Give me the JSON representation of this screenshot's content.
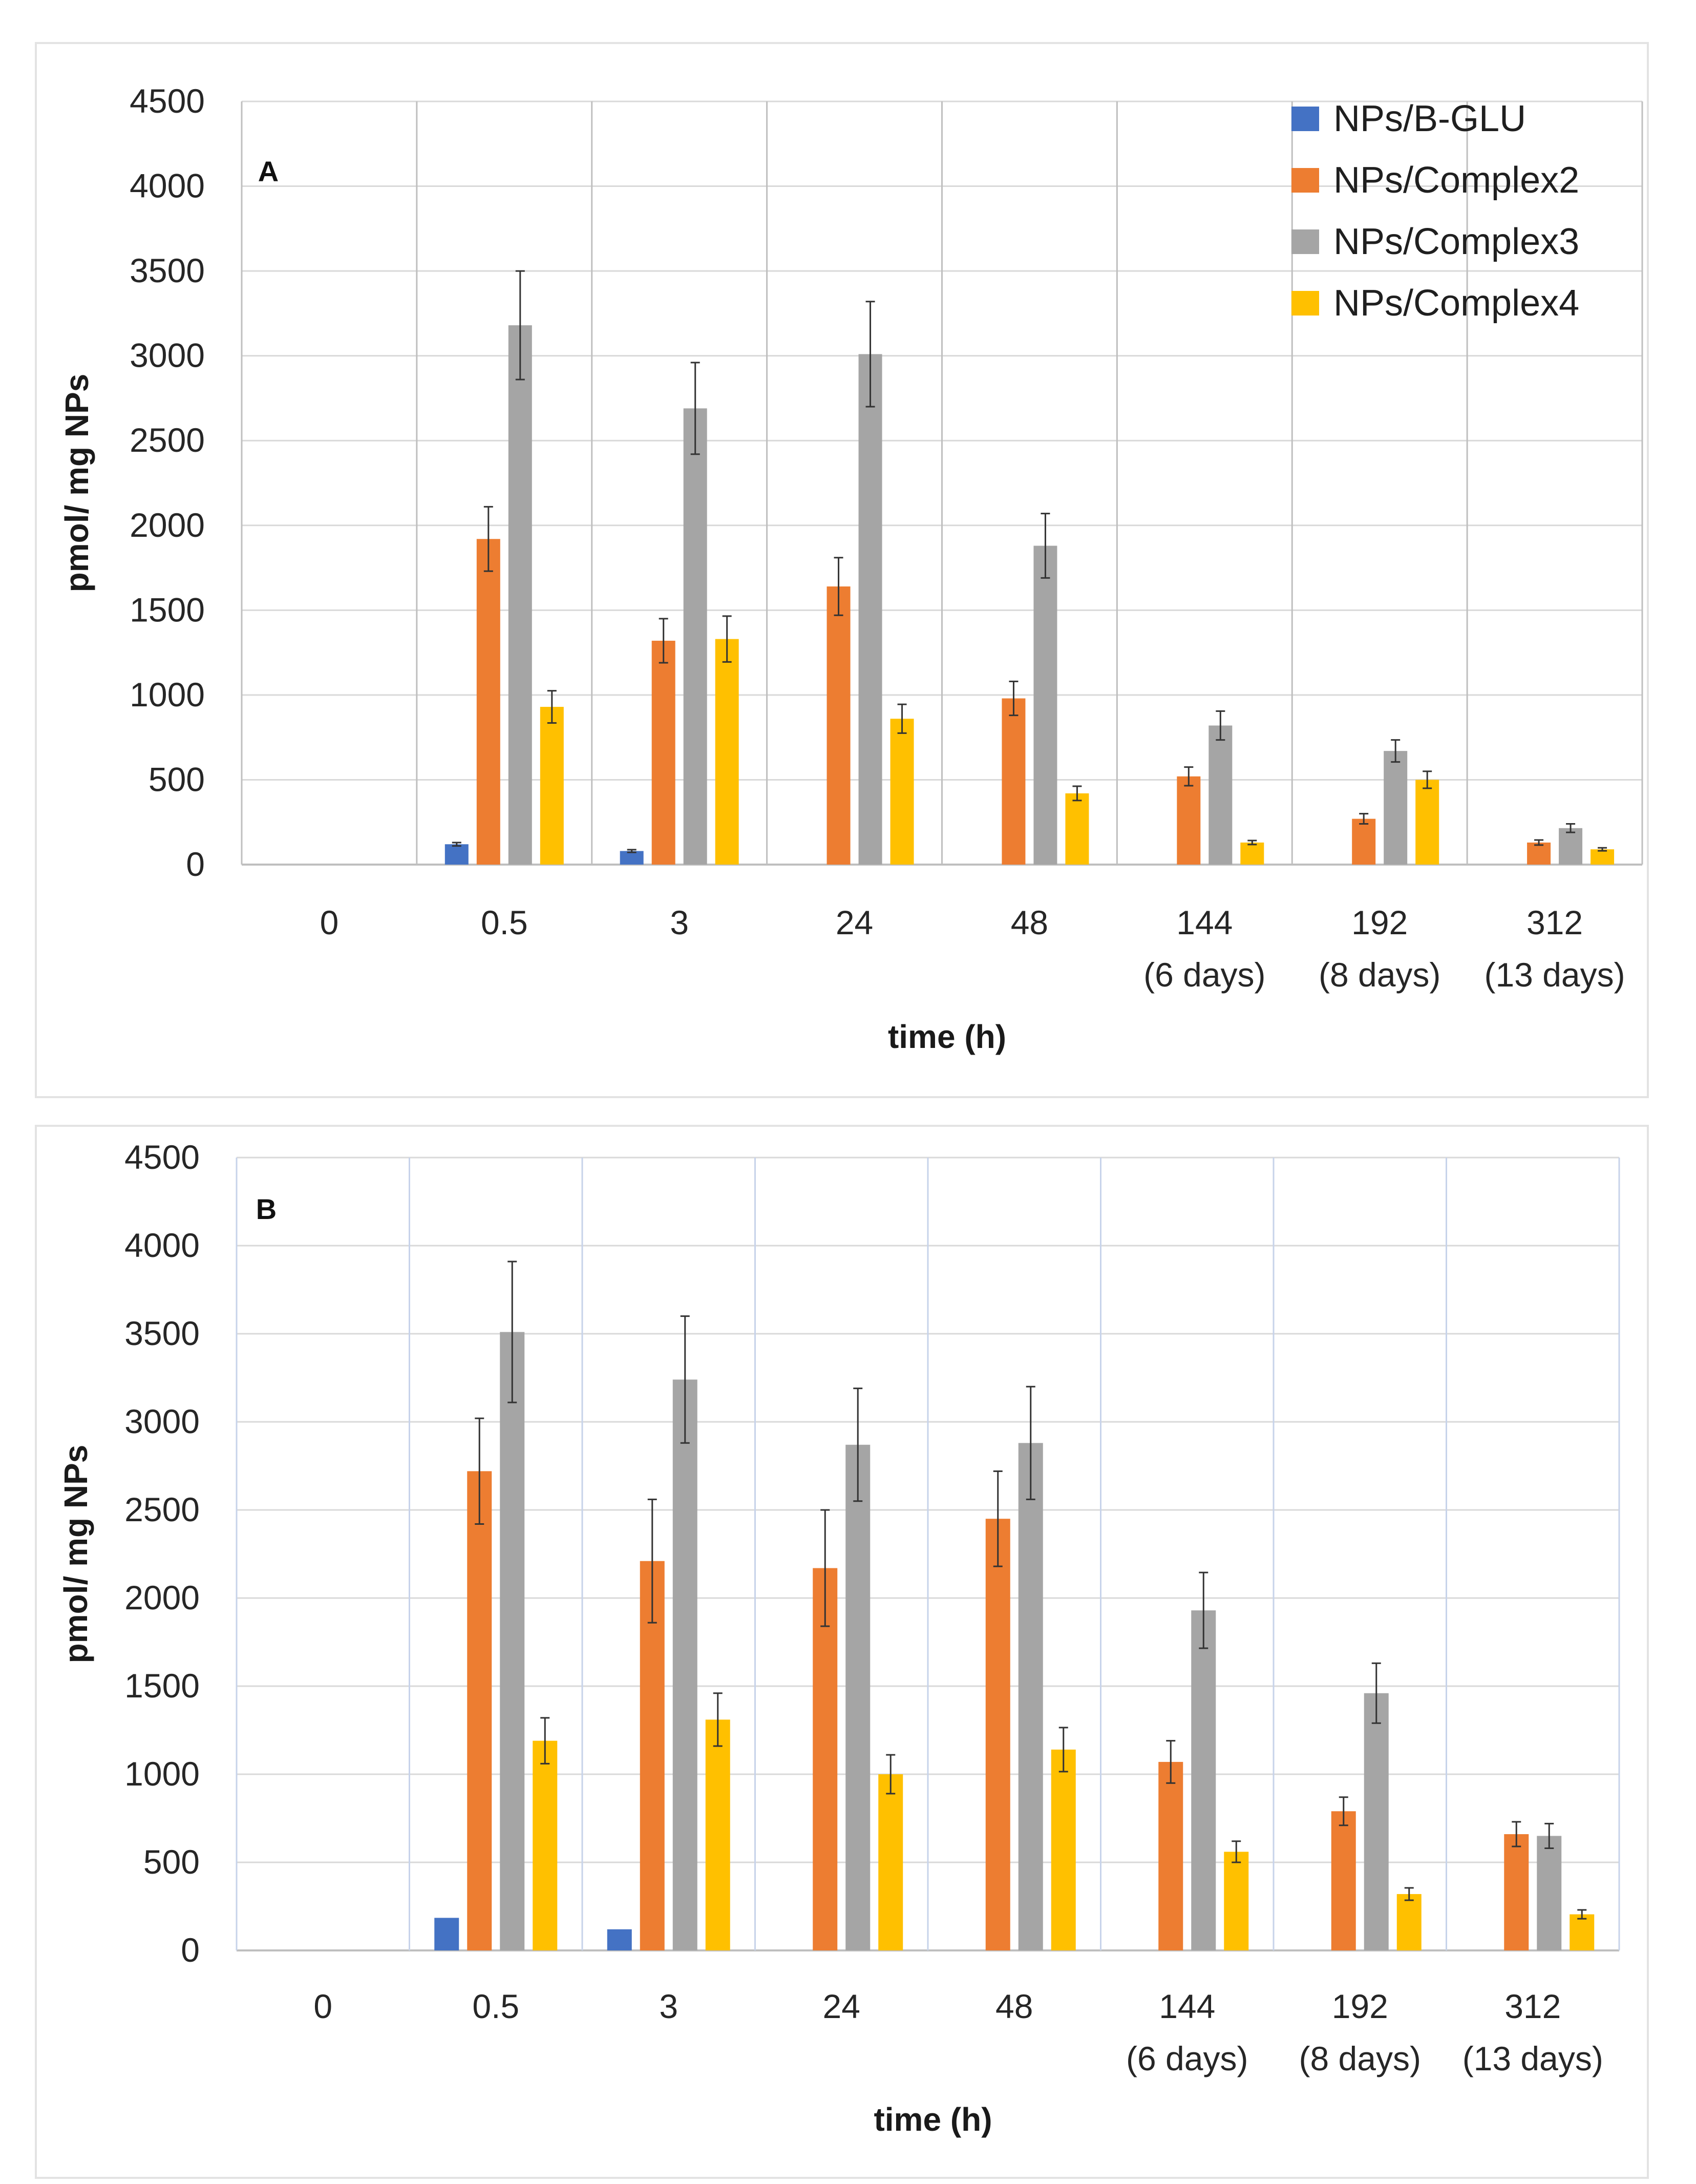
{
  "chart_data": [
    {
      "type": "bar",
      "panel_label": "A",
      "categories": [
        {
          "line1": "0",
          "line2": ""
        },
        {
          "line1": "0.5",
          "line2": ""
        },
        {
          "line1": "3",
          "line2": ""
        },
        {
          "line1": "24",
          "line2": ""
        },
        {
          "line1": "48",
          "line2": ""
        },
        {
          "line1": "144",
          "line2": "(6 days)"
        },
        {
          "line1": "192",
          "line2": "(8 days)"
        },
        {
          "line1": "312",
          "line2": "(13 days)"
        }
      ],
      "xlabel": "time (h)",
      "ylabel": "pmol/ mg NPs",
      "ylim": [
        0,
        4500
      ],
      "yticks": [
        0,
        500,
        1000,
        1500,
        2000,
        2500,
        3000,
        3500,
        4000,
        4500
      ],
      "grid": "horizontal and vertical",
      "legend": "top-right",
      "series": [
        {
          "name": "NPs/B-GLU",
          "color": "#4472c4",
          "values": [
            0,
            120,
            80,
            0,
            0,
            0,
            0,
            0
          ],
          "errors": [
            0,
            10,
            8,
            0,
            0,
            0,
            0,
            0
          ]
        },
        {
          "name": "NPs/Complex2",
          "color": "#ed7d31",
          "values": [
            0,
            1920,
            1320,
            1640,
            980,
            520,
            270,
            130
          ],
          "errors": [
            0,
            190,
            130,
            170,
            100,
            55,
            30,
            15
          ]
        },
        {
          "name": "NPs/Complex3",
          "color": "#a5a5a5",
          "values": [
            0,
            3180,
            2690,
            3010,
            1880,
            820,
            670,
            215
          ],
          "errors": [
            0,
            320,
            270,
            310,
            190,
            85,
            65,
            25
          ]
        },
        {
          "name": "NPs/Complex4",
          "color": "#ffc000",
          "values": [
            0,
            930,
            1330,
            860,
            420,
            130,
            500,
            90
          ],
          "errors": [
            0,
            95,
            135,
            85,
            42,
            12,
            50,
            9
          ]
        }
      ]
    },
    {
      "type": "bar",
      "panel_label": "B",
      "categories": [
        {
          "line1": "0",
          "line2": ""
        },
        {
          "line1": "0.5",
          "line2": ""
        },
        {
          "line1": "3",
          "line2": ""
        },
        {
          "line1": "24",
          "line2": ""
        },
        {
          "line1": "48",
          "line2": ""
        },
        {
          "line1": "144",
          "line2": "(6 days)"
        },
        {
          "line1": "192",
          "line2": "(8 days)"
        },
        {
          "line1": "312",
          "line2": "(13 days)"
        }
      ],
      "xlabel": "time (h)",
      "ylabel": "pmol/ mg NPs",
      "ylim": [
        0,
        4500
      ],
      "yticks": [
        0,
        500,
        1000,
        1500,
        2000,
        2500,
        3000,
        3500,
        4000,
        4500
      ],
      "grid": "horizontal and vertical",
      "legend": "none",
      "series": [
        {
          "name": "NPs/B-GLU",
          "color": "#4472c4",
          "values": [
            0,
            185,
            120,
            0,
            0,
            0,
            0,
            0
          ],
          "errors": [
            0,
            0,
            0,
            0,
            0,
            0,
            0,
            0
          ]
        },
        {
          "name": "NPs/Complex2",
          "color": "#ed7d31",
          "values": [
            0,
            2720,
            2210,
            2170,
            2450,
            1070,
            790,
            660
          ],
          "errors": [
            0,
            300,
            350,
            330,
            270,
            120,
            80,
            70
          ]
        },
        {
          "name": "NPs/Complex3",
          "color": "#a5a5a5",
          "values": [
            0,
            3510,
            3240,
            2870,
            2880,
            1930,
            1460,
            650
          ],
          "errors": [
            0,
            400,
            360,
            320,
            320,
            215,
            170,
            70
          ]
        },
        {
          "name": "NPs/Complex4",
          "color": "#ffc000",
          "values": [
            0,
            1190,
            1310,
            1000,
            1140,
            560,
            320,
            205
          ],
          "errors": [
            0,
            130,
            150,
            110,
            125,
            60,
            35,
            25
          ]
        }
      ]
    }
  ]
}
